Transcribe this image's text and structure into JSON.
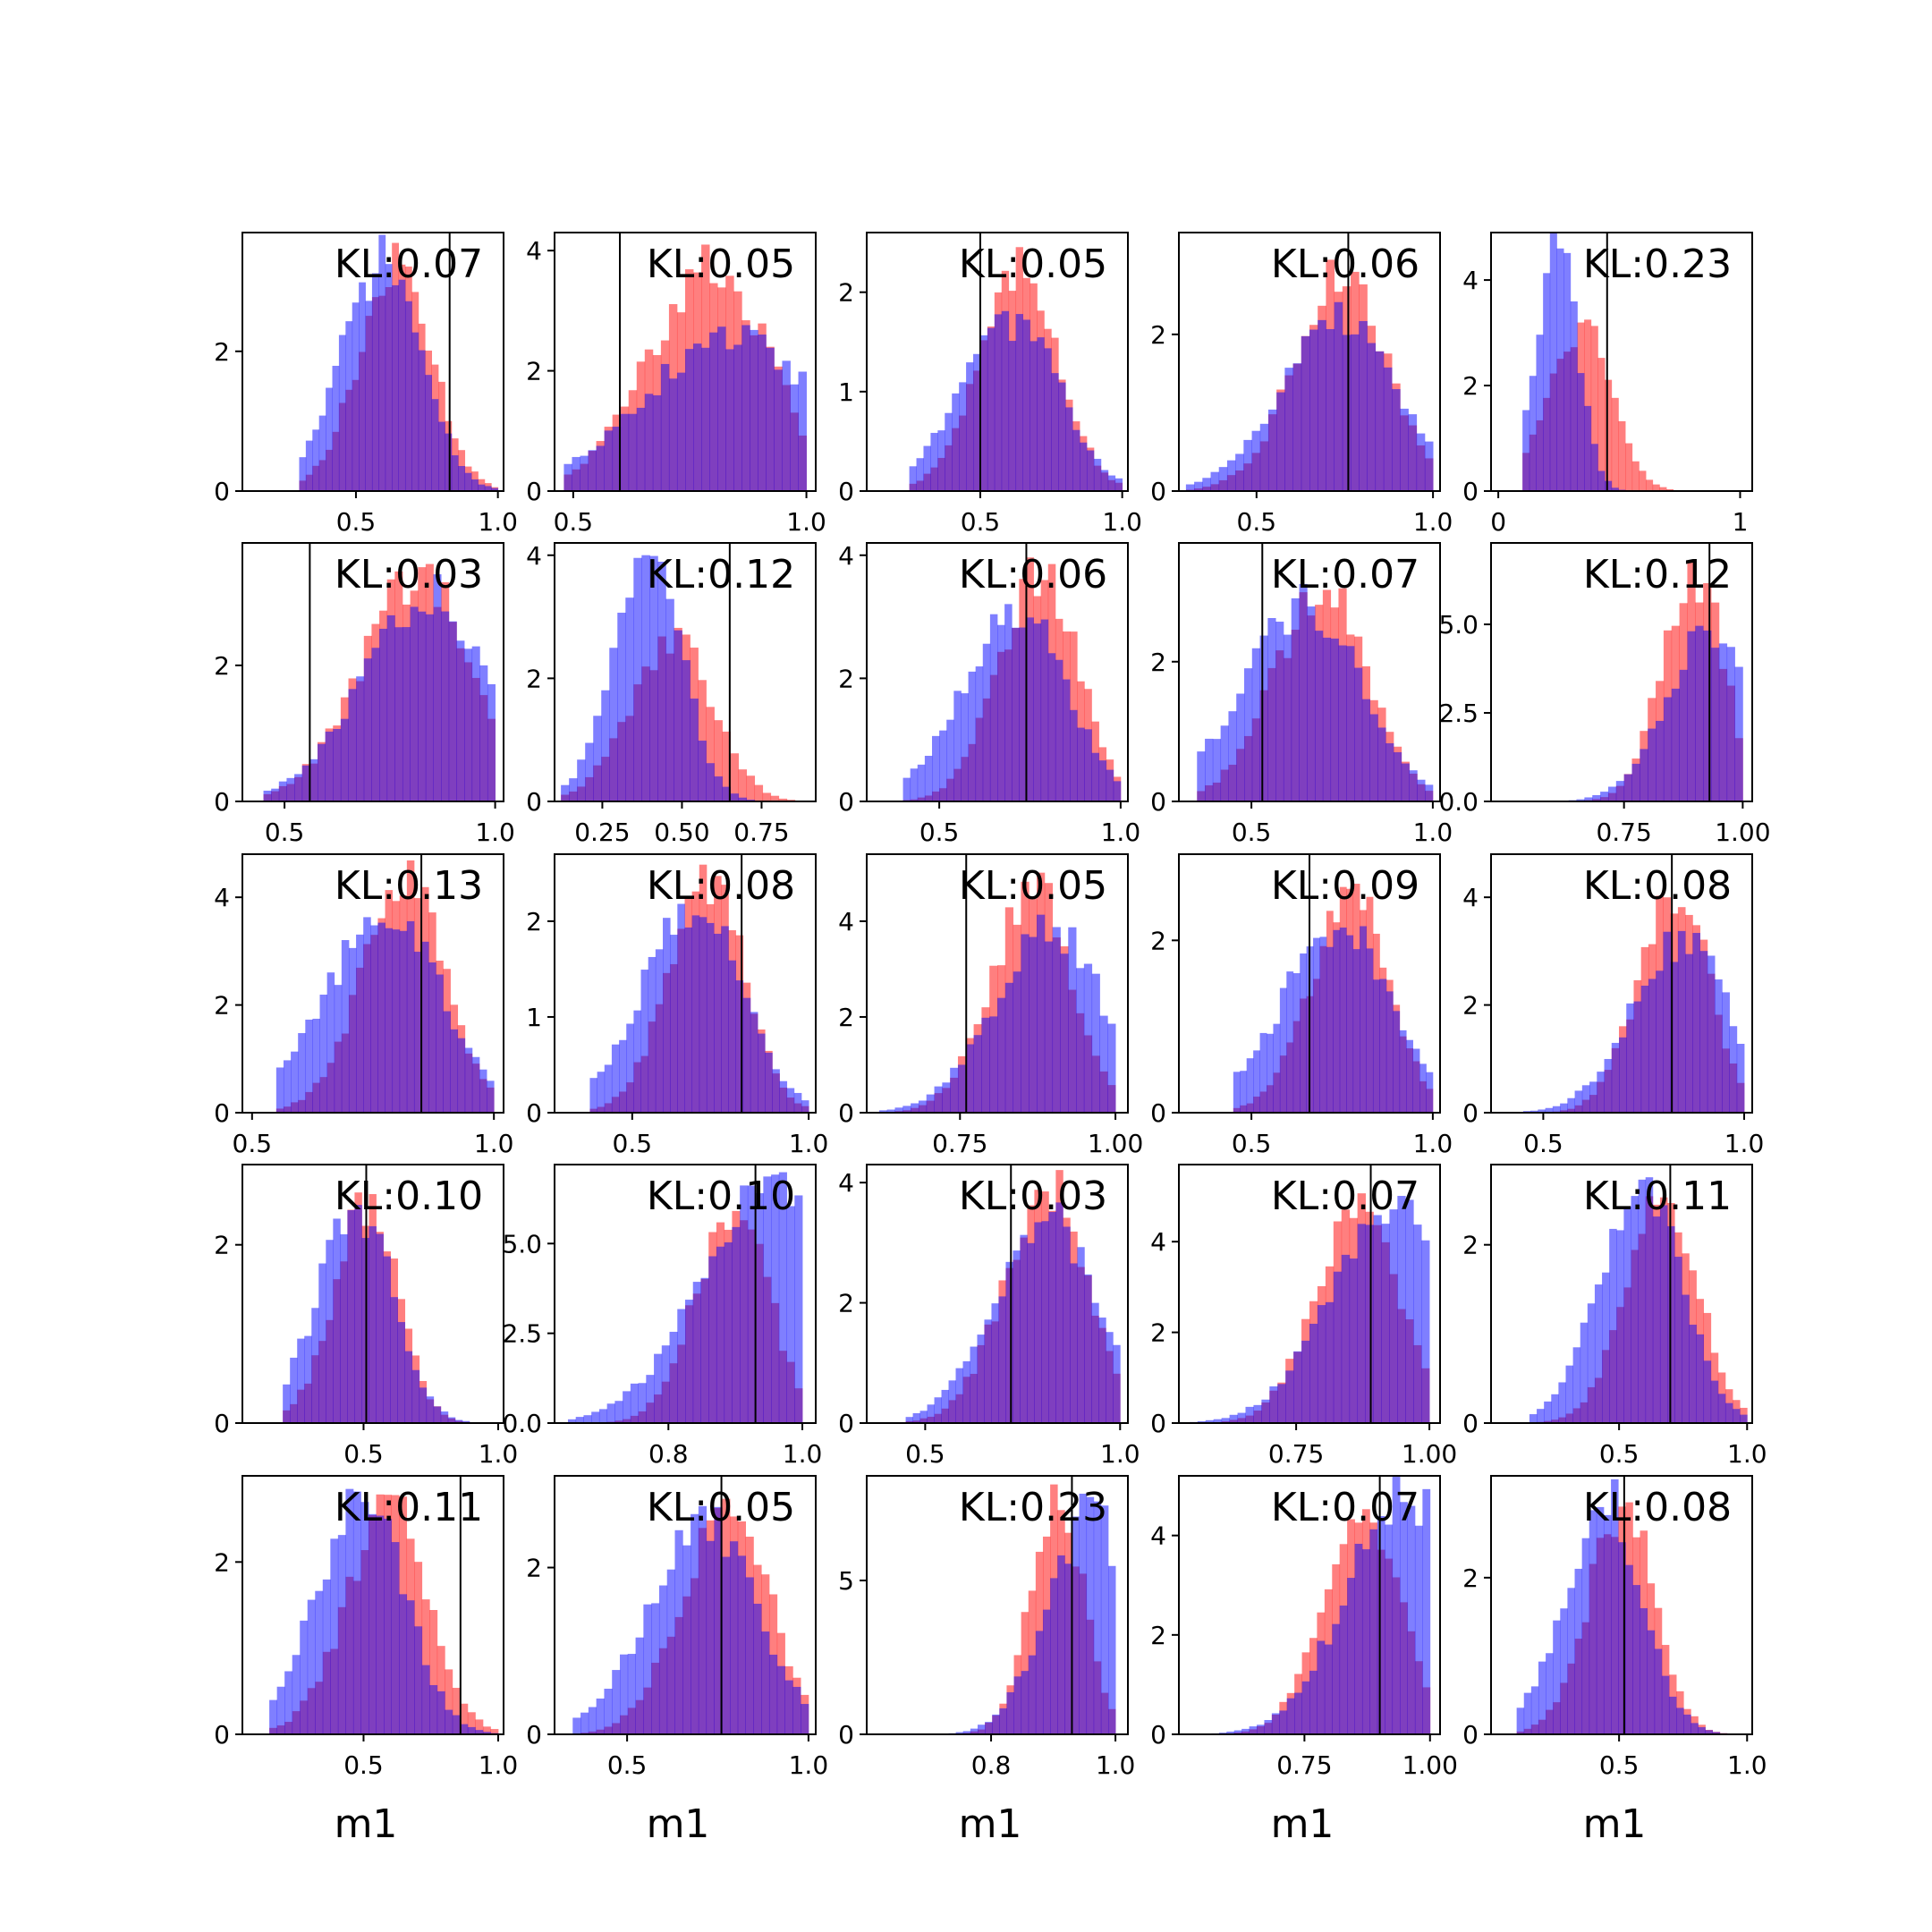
{
  "figure": {
    "colors": {
      "red": "#ff0000",
      "blue": "#0000ff",
      "overlap": "#7f3fbf",
      "frame": "#000000",
      "marker": "#000000"
    },
    "red_opacity": 0.5,
    "blue_opacity": 0.5
  },
  "chart_data": [
    {
      "type": "histogram",
      "kl_text": "KL:0.07",
      "xlim": [
        0.1,
        1.02
      ],
      "xticks": [
        {
          "v": 0.5,
          "label": "0.5"
        },
        {
          "v": 1.0,
          "label": "1.0"
        }
      ],
      "ylim": [
        0,
        3.7
      ],
      "yticks": [
        {
          "v": 0,
          "label": "0"
        },
        {
          "v": 2,
          "label": "2"
        }
      ],
      "range": [
        0.3,
        1.0
      ],
      "red": {
        "peak": 0.65,
        "sd": 0.12,
        "max": 3.2
      },
      "blue": {
        "peak": 0.6,
        "sd": 0.13,
        "max": 3.3
      },
      "marker": 0.83,
      "xlabel": ""
    },
    {
      "type": "histogram",
      "kl_text": "KL:0.05",
      "xlim": [
        0.46,
        1.02
      ],
      "xticks": [
        {
          "v": 0.5,
          "label": "0.5"
        },
        {
          "v": 1.0,
          "label": "1.0"
        }
      ],
      "ylim": [
        0,
        4.3
      ],
      "yticks": [
        {
          "v": 0,
          "label": "0"
        },
        {
          "v": 2,
          "label": "2"
        },
        {
          "v": 4,
          "label": "4"
        }
      ],
      "range": [
        0.48,
        1.0
      ],
      "red": {
        "peak": 0.8,
        "sd": 0.12,
        "max": 3.7
      },
      "blue": {
        "peak": 0.85,
        "sd": 0.17,
        "max": 2.6
      },
      "marker": 0.6,
      "xlabel": ""
    },
    {
      "type": "histogram",
      "kl_text": "KL:0.05",
      "xlim": [
        0.1,
        1.02
      ],
      "xticks": [
        {
          "v": 0.5,
          "label": "0.5"
        },
        {
          "v": 1.0,
          "label": "1.0"
        }
      ],
      "ylim": [
        0,
        2.6
      ],
      "yticks": [
        {
          "v": 0,
          "label": "0"
        },
        {
          "v": 1,
          "label": "1"
        },
        {
          "v": 2,
          "label": "2"
        }
      ],
      "range": [
        0.25,
        1.0
      ],
      "red": {
        "peak": 0.65,
        "sd": 0.13,
        "max": 2.2
      },
      "blue": {
        "peak": 0.62,
        "sd": 0.16,
        "max": 1.7
      },
      "marker": 0.5,
      "xlabel": ""
    },
    {
      "type": "histogram",
      "kl_text": "KL:0.06",
      "xlim": [
        0.28,
        1.02
      ],
      "xticks": [
        {
          "v": 0.5,
          "label": "0.5"
        },
        {
          "v": 1.0,
          "label": "1.0"
        }
      ],
      "ylim": [
        0,
        3.3
      ],
      "yticks": [
        {
          "v": 0,
          "label": "0"
        },
        {
          "v": 2,
          "label": "2"
        }
      ],
      "range": [
        0.3,
        1.0
      ],
      "red": {
        "peak": 0.75,
        "sd": 0.12,
        "max": 2.8
      },
      "blue": {
        "peak": 0.75,
        "sd": 0.15,
        "max": 2.2
      },
      "marker": 0.76,
      "xlabel": ""
    },
    {
      "type": "histogram",
      "kl_text": "KL:0.23",
      "xlim": [
        -0.03,
        1.05
      ],
      "xticks": [
        {
          "v": 0,
          "label": "0"
        },
        {
          "v": 1,
          "label": "1"
        }
      ],
      "ylim": [
        0,
        4.9
      ],
      "yticks": [
        {
          "v": 0,
          "label": "0"
        },
        {
          "v": 2,
          "label": "2"
        },
        {
          "v": 4,
          "label": "4"
        }
      ],
      "range": [
        0.1,
        0.95
      ],
      "red": {
        "peak": 0.35,
        "sd": 0.12,
        "max": 3.2
      },
      "blue": {
        "peak": 0.25,
        "sd": 0.08,
        "max": 4.6
      },
      "marker": 0.45,
      "xlabel": ""
    },
    {
      "type": "histogram",
      "kl_text": "KL:0.03",
      "xlim": [
        0.4,
        1.02
      ],
      "xticks": [
        {
          "v": 0.5,
          "label": "0.5"
        },
        {
          "v": 1.0,
          "label": "1.0"
        }
      ],
      "ylim": [
        0,
        3.8
      ],
      "yticks": [
        {
          "v": 0,
          "label": "0"
        },
        {
          "v": 2,
          "label": "2"
        }
      ],
      "range": [
        0.45,
        1.0
      ],
      "red": {
        "peak": 0.82,
        "sd": 0.12,
        "max": 3.3
      },
      "blue": {
        "peak": 0.85,
        "sd": 0.14,
        "max": 3.0
      },
      "marker": 0.56,
      "xlabel": ""
    },
    {
      "type": "histogram",
      "kl_text": "KL:0.12",
      "xlim": [
        0.1,
        0.92
      ],
      "xticks": [
        {
          "v": 0.25,
          "label": "0.25"
        },
        {
          "v": 0.5,
          "label": "0.50"
        },
        {
          "v": 0.75,
          "label": "0.75"
        }
      ],
      "ylim": [
        0,
        4.2
      ],
      "yticks": [
        {
          "v": 0,
          "label": "0"
        },
        {
          "v": 2,
          "label": "2"
        },
        {
          "v": 4,
          "label": "4"
        }
      ],
      "range": [
        0.12,
        0.88
      ],
      "red": {
        "peak": 0.48,
        "sd": 0.12,
        "max": 2.6
      },
      "blue": {
        "peak": 0.4,
        "sd": 0.1,
        "max": 3.9
      },
      "marker": 0.65,
      "xlabel": ""
    },
    {
      "type": "histogram",
      "kl_text": "KL:0.06",
      "xlim": [
        0.3,
        1.02
      ],
      "xticks": [
        {
          "v": 0.5,
          "label": "0.5"
        },
        {
          "v": 1.0,
          "label": "1.0"
        }
      ],
      "ylim": [
        0,
        4.2
      ],
      "yticks": [
        {
          "v": 0,
          "label": "0"
        },
        {
          "v": 2,
          "label": "2"
        },
        {
          "v": 4,
          "label": "4"
        }
      ],
      "range": [
        0.4,
        1.0
      ],
      "red": {
        "peak": 0.78,
        "sd": 0.1,
        "max": 3.8
      },
      "blue": {
        "peak": 0.72,
        "sd": 0.13,
        "max": 3.2
      },
      "marker": 0.74,
      "xlabel": ""
    },
    {
      "type": "histogram",
      "kl_text": "KL:0.07",
      "xlim": [
        0.3,
        1.02
      ],
      "xticks": [
        {
          "v": 0.5,
          "label": "0.5"
        },
        {
          "v": 1.0,
          "label": "1.0"
        }
      ],
      "ylim": [
        0,
        3.7
      ],
      "yticks": [
        {
          "v": 0,
          "label": "0"
        },
        {
          "v": 2,
          "label": "2"
        }
      ],
      "range": [
        0.35,
        1.0
      ],
      "red": {
        "peak": 0.7,
        "sd": 0.12,
        "max": 3.0
      },
      "blue": {
        "peak": 0.65,
        "sd": 0.15,
        "max": 2.8
      },
      "marker": 0.53,
      "xlabel": ""
    },
    {
      "type": "histogram",
      "kl_text": "KL:0.12",
      "xlim": [
        0.47,
        1.02
      ],
      "xticks": [
        {
          "v": 0.75,
          "label": "0.75"
        },
        {
          "v": 1.0,
          "label": "1.00"
        }
      ],
      "ylim": [
        0,
        7.3
      ],
      "yticks": [
        {
          "v": 0,
          "label": "0.0"
        },
        {
          "v": 2.5,
          "label": "2.5"
        },
        {
          "v": 5,
          "label": "5.0"
        }
      ],
      "range": [
        0.5,
        1.0
      ],
      "red": {
        "peak": 0.9,
        "sd": 0.06,
        "max": 6.4
      },
      "blue": {
        "peak": 0.93,
        "sd": 0.08,
        "max": 4.8
      },
      "marker": 0.93,
      "xlabel": ""
    },
    {
      "type": "histogram",
      "kl_text": "KL:0.13",
      "xlim": [
        0.48,
        1.02
      ],
      "xticks": [
        {
          "v": 0.5,
          "label": "0.5"
        },
        {
          "v": 1.0,
          "label": "1.0"
        }
      ],
      "ylim": [
        0,
        4.8
      ],
      "yticks": [
        {
          "v": 0,
          "label": "0"
        },
        {
          "v": 2,
          "label": "2"
        },
        {
          "v": 4,
          "label": "4"
        }
      ],
      "range": [
        0.55,
        1.0
      ],
      "red": {
        "peak": 0.82,
        "sd": 0.08,
        "max": 4.3
      },
      "blue": {
        "peak": 0.78,
        "sd": 0.11,
        "max": 3.7
      },
      "marker": 0.85,
      "xlabel": ""
    },
    {
      "type": "histogram",
      "kl_text": "KL:0.08",
      "xlim": [
        0.28,
        1.02
      ],
      "xticks": [
        {
          "v": 0.5,
          "label": "0.5"
        },
        {
          "v": 1.0,
          "label": "1.0"
        }
      ],
      "ylim": [
        0,
        2.7
      ],
      "yticks": [
        {
          "v": 0,
          "label": "0"
        },
        {
          "v": 1,
          "label": "1"
        },
        {
          "v": 2,
          "label": "2"
        }
      ],
      "range": [
        0.38,
        1.0
      ],
      "red": {
        "peak": 0.72,
        "sd": 0.1,
        "max": 2.4
      },
      "blue": {
        "peak": 0.68,
        "sd": 0.13,
        "max": 2.2
      },
      "marker": 0.81,
      "xlabel": ""
    },
    {
      "type": "histogram",
      "kl_text": "KL:0.05",
      "xlim": [
        0.6,
        1.02
      ],
      "xticks": [
        {
          "v": 0.75,
          "label": "0.75"
        },
        {
          "v": 1.0,
          "label": "1.00"
        }
      ],
      "ylim": [
        0,
        5.4
      ],
      "yticks": [
        {
          "v": 0,
          "label": "0"
        },
        {
          "v": 2,
          "label": "2"
        },
        {
          "v": 4,
          "label": "4"
        }
      ],
      "range": [
        0.62,
        1.0
      ],
      "red": {
        "peak": 0.87,
        "sd": 0.06,
        "max": 4.6
      },
      "blue": {
        "peak": 0.9,
        "sd": 0.08,
        "max": 3.8
      },
      "marker": 0.76,
      "xlabel": ""
    },
    {
      "type": "histogram",
      "kl_text": "KL:0.09",
      "xlim": [
        0.3,
        1.02
      ],
      "xticks": [
        {
          "v": 0.5,
          "label": "0.5"
        },
        {
          "v": 1.0,
          "label": "1.0"
        }
      ],
      "ylim": [
        0,
        3.0
      ],
      "yticks": [
        {
          "v": 0,
          "label": "0"
        },
        {
          "v": 2,
          "label": "2"
        }
      ],
      "range": [
        0.45,
        1.0
      ],
      "red": {
        "peak": 0.78,
        "sd": 0.1,
        "max": 2.5
      },
      "blue": {
        "peak": 0.75,
        "sd": 0.14,
        "max": 2.2
      },
      "marker": 0.66,
      "xlabel": ""
    },
    {
      "type": "histogram",
      "kl_text": "KL:0.08",
      "xlim": [
        0.37,
        1.02
      ],
      "xticks": [
        {
          "v": 0.5,
          "label": "0.5"
        },
        {
          "v": 1.0,
          "label": "1.0"
        }
      ],
      "ylim": [
        0,
        4.8
      ],
      "yticks": [
        {
          "v": 0,
          "label": "0"
        },
        {
          "v": 2,
          "label": "2"
        },
        {
          "v": 4,
          "label": "4"
        }
      ],
      "range": [
        0.45,
        1.0
      ],
      "red": {
        "peak": 0.83,
        "sd": 0.08,
        "max": 4.2
      },
      "blue": {
        "peak": 0.85,
        "sd": 0.11,
        "max": 3.2
      },
      "marker": 0.82,
      "xlabel": ""
    },
    {
      "type": "histogram",
      "kl_text": "KL:0.10",
      "xlim": [
        0.05,
        1.02
      ],
      "xticks": [
        {
          "v": 0.5,
          "label": "0.5"
        },
        {
          "v": 1.0,
          "label": "1.0"
        }
      ],
      "ylim": [
        0,
        2.9
      ],
      "yticks": [
        {
          "v": 0,
          "label": "0"
        },
        {
          "v": 2,
          "label": "2"
        }
      ],
      "range": [
        0.2,
        1.0
      ],
      "red": {
        "peak": 0.52,
        "sd": 0.11,
        "max": 2.5
      },
      "blue": {
        "peak": 0.48,
        "sd": 0.13,
        "max": 2.4
      },
      "marker": 0.51,
      "xlabel": ""
    },
    {
      "type": "histogram",
      "kl_text": "KL:0.10",
      "xlim": [
        0.63,
        1.02
      ],
      "xticks": [
        {
          "v": 0.8,
          "label": "0.8"
        },
        {
          "v": 1.0,
          "label": "1.0"
        }
      ],
      "ylim": [
        0,
        7.2
      ],
      "yticks": [
        {
          "v": 0,
          "label": "0.0"
        },
        {
          "v": 2.5,
          "label": "2.5"
        },
        {
          "v": 5,
          "label": "5.0"
        }
      ],
      "range": [
        0.65,
        1.0
      ],
      "red": {
        "peak": 0.9,
        "sd": 0.05,
        "max": 6.1
      },
      "blue": {
        "peak": 0.95,
        "sd": 0.09,
        "max": 6.6
      },
      "marker": 0.93,
      "xlabel": ""
    },
    {
      "type": "histogram",
      "kl_text": "KL:0.03",
      "xlim": [
        0.35,
        1.02
      ],
      "xticks": [
        {
          "v": 0.5,
          "label": "0.5"
        },
        {
          "v": 1.0,
          "label": "1.0"
        }
      ],
      "ylim": [
        0,
        4.3
      ],
      "yticks": [
        {
          "v": 0,
          "label": "0"
        },
        {
          "v": 2,
          "label": "2"
        },
        {
          "v": 4,
          "label": "4"
        }
      ],
      "range": [
        0.45,
        1.0
      ],
      "red": {
        "peak": 0.82,
        "sd": 0.1,
        "max": 3.9
      },
      "blue": {
        "peak": 0.82,
        "sd": 0.12,
        "max": 3.4
      },
      "marker": 0.72,
      "xlabel": ""
    },
    {
      "type": "histogram",
      "kl_text": "KL:0.07",
      "xlim": [
        0.53,
        1.02
      ],
      "xticks": [
        {
          "v": 0.75,
          "label": "0.75"
        },
        {
          "v": 1.0,
          "label": "1.00"
        }
      ],
      "ylim": [
        0,
        5.7
      ],
      "yticks": [
        {
          "v": 0,
          "label": "0"
        },
        {
          "v": 2,
          "label": "2"
        },
        {
          "v": 4,
          "label": "4"
        }
      ],
      "range": [
        0.55,
        1.0
      ],
      "red": {
        "peak": 0.87,
        "sd": 0.07,
        "max": 5.0
      },
      "blue": {
        "peak": 0.93,
        "sd": 0.1,
        "max": 4.8
      },
      "marker": 0.89,
      "xlabel": ""
    },
    {
      "type": "histogram",
      "kl_text": "KL:0.11",
      "xlim": [
        0.0,
        1.02
      ],
      "xticks": [
        {
          "v": 0.5,
          "label": "0.5"
        },
        {
          "v": 1.0,
          "label": "1.0"
        }
      ],
      "ylim": [
        0,
        2.9
      ],
      "yticks": [
        {
          "v": 0,
          "label": "0"
        },
        {
          "v": 2,
          "label": "2"
        }
      ],
      "range": [
        0.15,
        1.0
      ],
      "red": {
        "peak": 0.68,
        "sd": 0.13,
        "max": 2.5
      },
      "blue": {
        "peak": 0.6,
        "sd": 0.15,
        "max": 2.6
      },
      "marker": 0.7,
      "xlabel": ""
    },
    {
      "type": "histogram",
      "kl_text": "KL:0.11",
      "xlim": [
        0.05,
        1.02
      ],
      "xticks": [
        {
          "v": 0.5,
          "label": "0.5"
        },
        {
          "v": 1.0,
          "label": "1.0"
        }
      ],
      "ylim": [
        0,
        3.0
      ],
      "yticks": [
        {
          "v": 0,
          "label": "0"
        },
        {
          "v": 2,
          "label": "2"
        }
      ],
      "range": [
        0.15,
        1.0
      ],
      "red": {
        "peak": 0.6,
        "sd": 0.14,
        "max": 2.6
      },
      "blue": {
        "peak": 0.5,
        "sd": 0.15,
        "max": 2.8
      },
      "marker": 0.86,
      "xlabel": "m1"
    },
    {
      "type": "histogram",
      "kl_text": "KL:0.05",
      "xlim": [
        0.3,
        1.02
      ],
      "xticks": [
        {
          "v": 0.5,
          "label": "0.5"
        },
        {
          "v": 1.0,
          "label": "1.0"
        }
      ],
      "ylim": [
        0,
        3.1
      ],
      "yticks": [
        {
          "v": 0,
          "label": "0"
        },
        {
          "v": 2,
          "label": "2"
        }
      ],
      "range": [
        0.35,
        1.0
      ],
      "red": {
        "peak": 0.78,
        "sd": 0.11,
        "max": 2.8
      },
      "blue": {
        "peak": 0.72,
        "sd": 0.14,
        "max": 2.5
      },
      "marker": 0.76,
      "xlabel": "m1"
    },
    {
      "type": "histogram",
      "kl_text": "KL:0.23",
      "xlim": [
        0.6,
        1.02
      ],
      "xticks": [
        {
          "v": 0.8,
          "label": "0.8"
        },
        {
          "v": 1.0,
          "label": "1.0"
        }
      ],
      "ylim": [
        0,
        8.4
      ],
      "yticks": [
        {
          "v": 0,
          "label": "0"
        },
        {
          "v": 5,
          "label": "5"
        }
      ],
      "range": [
        0.65,
        1.0
      ],
      "red": {
        "peak": 0.91,
        "sd": 0.04,
        "max": 7.5
      },
      "blue": {
        "peak": 0.96,
        "sd": 0.06,
        "max": 7.2
      },
      "marker": 0.93,
      "xlabel": "m1"
    },
    {
      "type": "histogram",
      "kl_text": "KL:0.07",
      "xlim": [
        0.5,
        1.02
      ],
      "xticks": [
        {
          "v": 0.75,
          "label": "0.75"
        },
        {
          "v": 1.0,
          "label": "1.00"
        }
      ],
      "ylim": [
        0,
        5.2
      ],
      "yticks": [
        {
          "v": 0,
          "label": "0"
        },
        {
          "v": 2,
          "label": "2"
        },
        {
          "v": 4,
          "label": "4"
        }
      ],
      "range": [
        0.55,
        1.0
      ],
      "red": {
        "peak": 0.87,
        "sd": 0.07,
        "max": 4.5
      },
      "blue": {
        "peak": 0.95,
        "sd": 0.1,
        "max": 4.9
      },
      "marker": 0.9,
      "xlabel": "m1"
    },
    {
      "type": "histogram",
      "kl_text": "KL:0.08",
      "xlim": [
        0.0,
        1.02
      ],
      "xticks": [
        {
          "v": 0.5,
          "label": "0.5"
        },
        {
          "v": 1.0,
          "label": "1.0"
        }
      ],
      "ylim": [
        0,
        3.3
      ],
      "yticks": [
        {
          "v": 0,
          "label": "0"
        },
        {
          "v": 2,
          "label": "2"
        }
      ],
      "range": [
        0.1,
        0.95
      ],
      "red": {
        "peak": 0.52,
        "sd": 0.12,
        "max": 2.9
      },
      "blue": {
        "peak": 0.45,
        "sd": 0.14,
        "max": 3.0
      },
      "marker": 0.52,
      "xlabel": "m1"
    }
  ]
}
